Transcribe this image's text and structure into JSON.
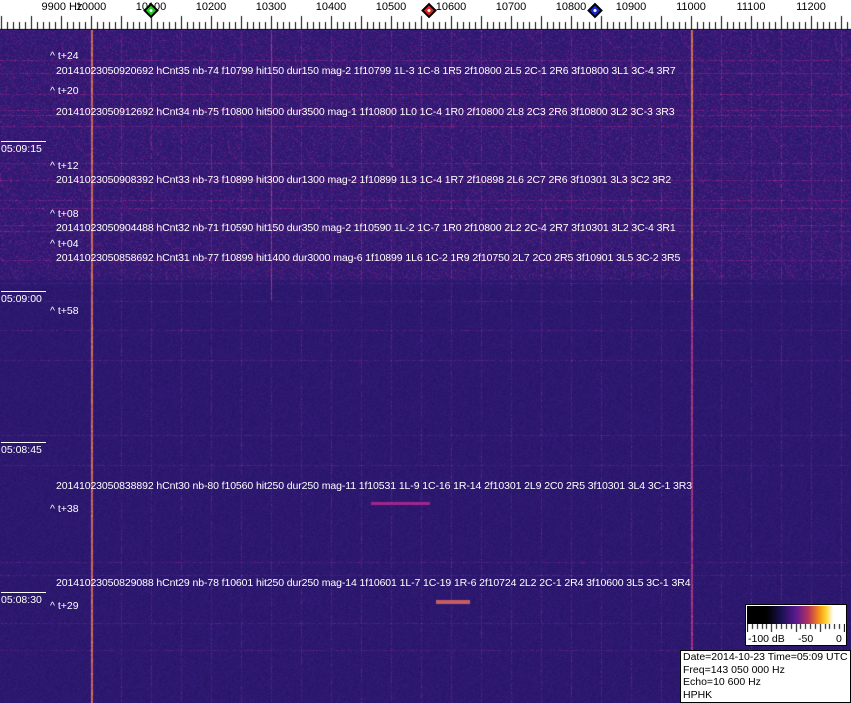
{
  "frequency_axis": {
    "unit_label": "9900 Hz",
    "labels": [
      "10000",
      "10100",
      "10200",
      "10300",
      "10400",
      "10500",
      "10600",
      "10700",
      "10800",
      "10900",
      "11000",
      "11100",
      "11200"
    ],
    "first_value": 9900
  },
  "markers": [
    {
      "name": "green-marker",
      "freq": 10100,
      "color": "#22cc22"
    },
    {
      "name": "red-marker",
      "freq": 10563,
      "color": "#dd2222"
    },
    {
      "name": "blue-marker",
      "freq": 10840,
      "color": "#1a2ad0"
    }
  ],
  "time_labels": [
    "05:09:15",
    "05:09:00",
    "05:08:45",
    "05:08:30"
  ],
  "offset_labels": [
    "^ t+24",
    "^ t+20",
    "^ t+12",
    "^ t+08",
    "^ t+04",
    "^ t+58",
    "^ t+38",
    "^ t+29"
  ],
  "detections": [
    "20141023050920692 hCnt35 nb-74 f10799 hit150 dur150 mag-2 1f10799 1L-3 1C-8 1R5 2f10800 2L5 2C-1 2R6 3f10800 3L1 3C-4 3R7",
    "20141023050912692 hCnt34 nb-75 f10800 hit500 dur3500 mag-1 1f10800 1L0 1C-4 1R0 2f10800 2L8 2C3 2R6 3f10800 3L2 3C-3 3R3",
    "20141023050908392 hCnt33 nb-73 f10899 hit300 dur1300 mag-2 1f10899 1L3 1C-4 1R7 2f10898 2L6 2C7 2R6 3f10301 3L3 3C2 3R2",
    "20141023050904488 hCnt32 nb-71 f10590 hit150 dur350 mag-2 1f10590 1L-2 1C-7 1R0 2f10800 2L2 2C-4 2R7 3f10301 3L2 3C-4 3R1",
    "20141023050858692 hCnt31 nb-77 f10899 hit1400 dur3000 mag-6 1f10899 1L6 1C-2 1R9 2f10750 2L7 2C0 2R5 3f10901 3L5 3C-2 3R5",
    "20141023050838892 hCnt30 nb-80 f10560 hit250 dur250 mag-11 1f10531 1L-9 1C-16 1R-14 2f10301 2L9 2C0 2R5 3f10301 3L4 3C-1 3R3",
    "20141023050829088 hCnt29 nb-78 f10601 hit250 dur250 mag-14 1f10601 1L-7 1C-19 1R-6 2f10724 2L2 2C-1 2R4 3f10600 3L5 3C-1 3R4"
  ],
  "colorbar": {
    "labels": [
      "-100 dB",
      "-50",
      "0"
    ]
  },
  "info": {
    "date_time": "Date=2014-10-23 Time=05:09 UTC",
    "freq": "Freq=143 050 000 Hz",
    "echo": "Echo=10 600 Hz",
    "station": "HPHK"
  },
  "colors": {
    "background": "#2b1b78",
    "carrier": "#f0901c",
    "line": "#7a2a9a"
  }
}
